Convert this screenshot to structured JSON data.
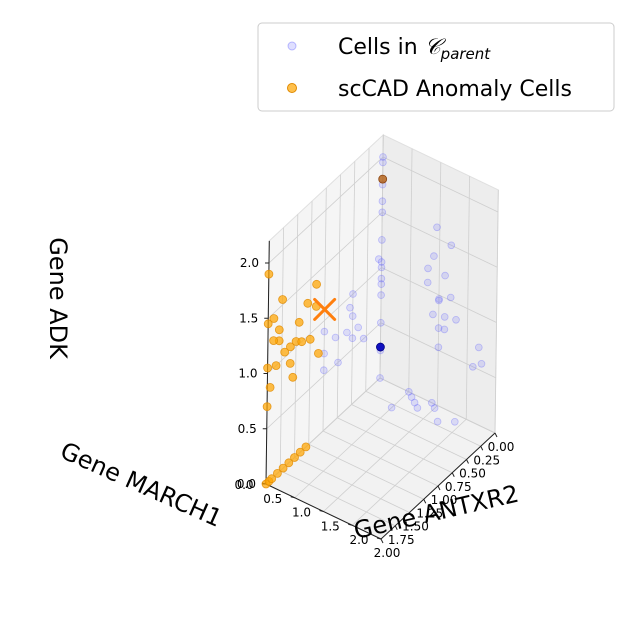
{
  "chart_data": {
    "type": "scatter3d",
    "title": "",
    "xlabel": "Gene ANTXR2",
    "ylabel": "Gene MARCH1",
    "zlabel": "Gene ADK",
    "xlim": [
      0.0,
      2.0
    ],
    "ylim": [
      0.0,
      2.0
    ],
    "zlim": [
      0.0,
      2.0
    ],
    "xticks": [
      "0.00",
      "0.25",
      "0.50",
      "0.75",
      "1.00",
      "1.25",
      "1.50",
      "1.75",
      "2.00"
    ],
    "yticks": [
      "0.0",
      "0.5",
      "1.0",
      "1.5",
      "2.0"
    ],
    "zticks": [
      "0.0",
      "0.5",
      "1.0",
      "1.5",
      "2.0"
    ],
    "grid": true,
    "legend_position": "top-right",
    "colors": {
      "parent": "#4b4bff",
      "anomaly": "#ffa500",
      "anomaly_edge": "#e08a00",
      "marker_x": "#ff7f0e",
      "dark_point": "#1010c0",
      "brown_point": "#b5651d"
    },
    "legend": {
      "parent_prefix": "Cells in ",
      "parent_symbol": "𝒞",
      "parent_sub": "parent",
      "anomaly": "scCAD Anomaly Cells"
    },
    "series": [
      {
        "name": "Cells in C_parent",
        "points": [
          [
            0.0,
            0.0,
            0.0
          ],
          [
            0.0,
            0.0,
            0.25
          ],
          [
            0.0,
            0.0,
            0.5
          ],
          [
            0.0,
            0.0,
            0.75
          ],
          [
            0.0,
            0.0,
            1.0
          ],
          [
            0.0,
            0.0,
            1.25
          ],
          [
            0.0,
            0.0,
            1.5
          ],
          [
            0.0,
            0.0,
            1.75
          ],
          [
            0.0,
            0.0,
            2.0
          ],
          [
            0.05,
            0.0,
            1.1
          ],
          [
            0.0,
            0.0,
            1.6
          ],
          [
            0.0,
            0.0,
            0.9
          ],
          [
            0.0,
            0.0,
            1.95
          ],
          [
            0.0,
            0.5,
            0.0
          ],
          [
            0.05,
            0.6,
            0.0
          ],
          [
            0.1,
            0.7,
            0.0
          ],
          [
            0.15,
            0.8,
            0.0
          ],
          [
            0.0,
            0.9,
            0.0
          ],
          [
            0.05,
            1.0,
            0.0
          ],
          [
            0.2,
            1.2,
            0.0
          ],
          [
            0.1,
            1.4,
            0.0
          ],
          [
            0.3,
            0.5,
            0.0
          ],
          [
            0.0,
            1.0,
            0.7
          ],
          [
            0.05,
            1.05,
            1.0
          ],
          [
            0.0,
            1.1,
            1.2
          ],
          [
            0.1,
            1.0,
            1.4
          ],
          [
            0.0,
            0.9,
            0.8
          ],
          [
            0.1,
            1.2,
            0.9
          ],
          [
            0.05,
            0.85,
            1.1
          ],
          [
            0.1,
            1.1,
            0.6
          ],
          [
            0.0,
            1.2,
            1.5
          ],
          [
            0.0,
            1.0,
            0.95
          ],
          [
            0.15,
            0.95,
            1.3
          ],
          [
            0.1,
            1.3,
            1.1
          ],
          [
            0.05,
            1.15,
            0.75
          ],
          [
            0.0,
            0.95,
            1.6
          ],
          [
            0.0,
            1.3,
            0.85
          ],
          [
            0.0,
            1.6,
            0.5
          ],
          [
            0.0,
            1.7,
            0.7
          ],
          [
            0.05,
            1.8,
            0.6
          ],
          [
            0.5,
            0.0,
            0.6
          ],
          [
            0.5,
            0.0,
            0.8
          ],
          [
            0.6,
            0.0,
            0.7
          ],
          [
            0.5,
            0.0,
            1.0
          ],
          [
            0.55,
            0.0,
            0.9
          ],
          [
            0.75,
            0.0,
            0.5
          ],
          [
            1.0,
            0.0,
            0.7
          ],
          [
            1.0,
            0.0,
            0.9
          ],
          [
            1.0,
            0.0,
            0.55
          ],
          [
            0.3,
            0.0,
            0.5
          ],
          [
            0.4,
            0.0,
            0.65
          ],
          [
            0.8,
            0.0,
            0.75
          ],
          [
            0.0,
            0.0,
            0.85
          ],
          [
            0.0,
            0.0,
            1.05
          ]
        ]
      },
      {
        "name": "scCAD Anomaly Cells",
        "points": [
          [
            2.0,
            0.0,
            1.9
          ],
          [
            2.0,
            0.0,
            1.45
          ],
          [
            2.0,
            0.0,
            1.05
          ],
          [
            1.95,
            0.0,
            0.85
          ],
          [
            2.0,
            0.0,
            0.7
          ],
          [
            1.85,
            0.0,
            1.0
          ],
          [
            1.8,
            0.0,
            1.2
          ],
          [
            1.8,
            0.0,
            1.3
          ],
          [
            1.75,
            0.0,
            1.55
          ],
          [
            1.7,
            0.0,
            1.05
          ],
          [
            1.6,
            0.0,
            0.9
          ],
          [
            1.55,
            0.0,
            0.75
          ],
          [
            1.5,
            0.0,
            1.05
          ],
          [
            1.45,
            0.0,
            1.2
          ],
          [
            1.4,
            0.0,
            1.0
          ],
          [
            1.3,
            0.0,
            1.3
          ],
          [
            1.25,
            0.0,
            0.95
          ],
          [
            1.15,
            0.0,
            1.4
          ],
          [
            1.15,
            0.0,
            1.2
          ],
          [
            1.1,
            0.0,
            0.75
          ],
          [
            2.0,
            0.0,
            0.0
          ],
          [
            1.95,
            0.0,
            0.0
          ],
          [
            1.9,
            0.0,
            0.0
          ],
          [
            1.8,
            0.0,
            0.0
          ],
          [
            1.7,
            0.0,
            0.0
          ],
          [
            1.6,
            0.0,
            0.0
          ],
          [
            1.5,
            0.0,
            0.0
          ],
          [
            1.4,
            0.0,
            0.0
          ],
          [
            1.3,
            0.0,
            0.0
          ],
          [
            1.6,
            0.0,
            1.05
          ],
          [
            1.9,
            0.0,
            1.25
          ],
          [
            1.9,
            0.0,
            1.45
          ]
        ]
      }
    ],
    "highlights": [
      {
        "name": "selected-cell-x",
        "point": [
          1.0,
          0.0,
          1.1
        ]
      },
      {
        "name": "dark-blue-cell",
        "point": [
          0.0,
          0.0,
          0.28
        ]
      },
      {
        "name": "brown-cell",
        "point": [
          0.0,
          0.0,
          1.8
        ]
      }
    ]
  }
}
